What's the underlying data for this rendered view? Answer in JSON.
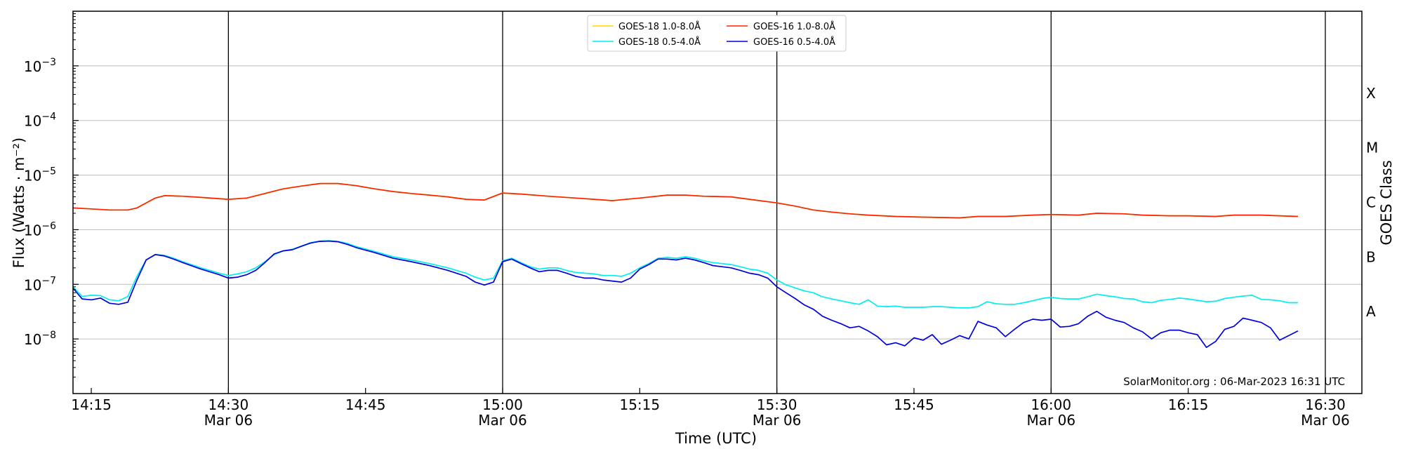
{
  "chart_data": {
    "type": "line",
    "xlabel": "Time (UTC)",
    "ylabel": "Flux (Watts · m⁻²)",
    "y2label": "GOES Class",
    "yscale": "log",
    "xlim": [
      "2023-03-06T14:13",
      "2023-03-06T16:34"
    ],
    "ylim": [
      1e-09,
      0.01
    ],
    "grid": "horizontal at decades",
    "x_tick_labels": [
      {
        "t": "14:15",
        "top": "14:15",
        "bottom": ""
      },
      {
        "t": "14:30",
        "top": "14:30",
        "bottom": "Mar 06"
      },
      {
        "t": "14:45",
        "top": "14:45",
        "bottom": ""
      },
      {
        "t": "15:00",
        "top": "15:00",
        "bottom": "Mar 06"
      },
      {
        "t": "15:15",
        "top": "15:15",
        "bottom": ""
      },
      {
        "t": "15:30",
        "top": "15:30",
        "bottom": "Mar 06"
      },
      {
        "t": "15:45",
        "top": "15:45",
        "bottom": ""
      },
      {
        "t": "16:00",
        "top": "16:00",
        "bottom": "Mar 06"
      },
      {
        "t": "16:15",
        "top": "16:15",
        "bottom": ""
      },
      {
        "t": "16:30",
        "top": "16:30",
        "bottom": "Mar 06"
      }
    ],
    "vertical_lines_at": [
      "14:30",
      "15:00",
      "15:30",
      "16:00",
      "16:30"
    ],
    "y_tick_labels": [
      {
        "exp": -8,
        "label": "10",
        "sup": "−8"
      },
      {
        "exp": -7,
        "label": "10",
        "sup": "−7"
      },
      {
        "exp": -6,
        "label": "10",
        "sup": "−6"
      },
      {
        "exp": -5,
        "label": "10",
        "sup": "−5"
      },
      {
        "exp": -4,
        "label": "10",
        "sup": "−4"
      },
      {
        "exp": -3,
        "label": "10",
        "sup": "−3"
      }
    ],
    "goes_classes": [
      {
        "label": "A",
        "exp": -7.5
      },
      {
        "label": "B",
        "exp": -6.5
      },
      {
        "label": "C",
        "exp": -5.5
      },
      {
        "label": "M",
        "exp": -4.5
      },
      {
        "label": "X",
        "exp": -3.5
      }
    ],
    "legend_position": "top-center",
    "annotation": "SolarMonitor.org : 06-Mar-2023 16:31 UTC",
    "series": [
      {
        "name": "GOES-18 1.0-8.0Å",
        "color": "#ffd700",
        "x": [
          "14:13",
          "14:15",
          "14:17",
          "14:19",
          "14:20",
          "14:22",
          "14:23",
          "14:25",
          "14:27",
          "14:30",
          "14:32",
          "14:34",
          "14:36",
          "14:38",
          "14:40",
          "14:42",
          "14:44",
          "14:46",
          "14:48",
          "14:50",
          "14:52",
          "14:54",
          "14:56",
          "14:58",
          "15:00",
          "15:02",
          "15:05",
          "15:08",
          "15:10",
          "15:12",
          "15:15",
          "15:18",
          "15:20",
          "15:22",
          "15:25",
          "15:27",
          "15:30",
          "15:32",
          "15:34",
          "15:36",
          "15:38",
          "15:40",
          "15:43",
          "15:46",
          "15:50",
          "15:52",
          "15:55",
          "15:58",
          "16:00",
          "16:03",
          "16:05",
          "16:08",
          "16:10",
          "16:13",
          "16:15",
          "16:18",
          "16:20",
          "16:23",
          "16:25",
          "16:27"
        ],
        "y": [
          2.5e-06,
          2.4e-06,
          2.3e-06,
          2.3e-06,
          2.5e-06,
          3.8e-06,
          4.2e-06,
          4.1e-06,
          3.9e-06,
          3.6e-06,
          3.8e-06,
          4.6e-06,
          5.6e-06,
          6.3e-06,
          7e-06,
          7e-06,
          6.4e-06,
          5.6e-06,
          5e-06,
          4.6e-06,
          4.3e-06,
          4e-06,
          3.6e-06,
          3.5e-06,
          4.7e-06,
          4.5e-06,
          4.1e-06,
          3.8e-06,
          3.6e-06,
          3.4e-06,
          3.8e-06,
          4.3e-06,
          4.3e-06,
          4.1e-06,
          4e-06,
          3.6e-06,
          3.1e-06,
          2.7e-06,
          2.3e-06,
          2.1e-06,
          1.95e-06,
          1.85e-06,
          1.75e-06,
          1.7e-06,
          1.65e-06,
          1.75e-06,
          1.75e-06,
          1.85e-06,
          1.9e-06,
          1.85e-06,
          2e-06,
          1.95e-06,
          1.85e-06,
          1.8e-06,
          1.8e-06,
          1.75e-06,
          1.85e-06,
          1.85e-06,
          1.8e-06,
          1.75e-06
        ]
      },
      {
        "name": "GOES-18 0.5-4.0Å",
        "color": "#00eeee",
        "x": [
          "14:13",
          "14:14",
          "14:15",
          "14:16",
          "14:17",
          "14:18",
          "14:19",
          "14:20",
          "14:21",
          "14:22",
          "14:23",
          "14:24",
          "14:25",
          "14:27",
          "14:29",
          "14:30",
          "14:31",
          "14:32",
          "14:33",
          "14:34",
          "14:35",
          "14:36",
          "14:37",
          "14:38",
          "14:39",
          "14:40",
          "14:41",
          "14:42",
          "14:43",
          "14:44",
          "14:46",
          "14:48",
          "14:50",
          "14:52",
          "14:54",
          "14:56",
          "14:57",
          "14:58",
          "14:59",
          "15:00",
          "15:01",
          "15:02",
          "15:03",
          "15:04",
          "15:05",
          "15:06",
          "15:07",
          "15:08",
          "15:09",
          "15:10",
          "15:11",
          "15:12",
          "15:13",
          "15:14",
          "15:15",
          "15:16",
          "15:17",
          "15:18",
          "15:19",
          "15:20",
          "15:21",
          "15:22",
          "15:23",
          "15:24",
          "15:25",
          "15:26",
          "15:27",
          "15:28",
          "15:29",
          "15:30",
          "15:31",
          "15:32",
          "15:33",
          "15:34",
          "15:35",
          "15:36",
          "15:37",
          "15:38",
          "15:39",
          "15:40",
          "15:41",
          "15:42",
          "15:43",
          "15:44",
          "15:45",
          "15:46",
          "15:47",
          "15:48",
          "15:49",
          "15:50",
          "15:51",
          "15:52",
          "15:53",
          "15:54",
          "15:55",
          "15:56",
          "15:57",
          "15:58",
          "15:59",
          "16:00",
          "16:01",
          "16:02",
          "16:03",
          "16:04",
          "16:05",
          "16:06",
          "16:07",
          "16:08",
          "16:09",
          "16:10",
          "16:11",
          "16:12",
          "16:13",
          "16:14",
          "16:15",
          "16:16",
          "16:17",
          "16:18",
          "16:19",
          "16:20",
          "16:21",
          "16:22",
          "16:23",
          "16:24",
          "16:25",
          "16:26",
          "16:27"
        ],
        "y": [
          9e-08,
          6e-08,
          6.3e-08,
          6.2e-08,
          5.2e-08,
          5e-08,
          6e-08,
          1.4e-07,
          2.8e-07,
          3.5e-07,
          3.4e-07,
          3e-07,
          2.6e-07,
          2e-07,
          1.6e-07,
          1.45e-07,
          1.55e-07,
          1.7e-07,
          2e-07,
          2.6e-07,
          3.5e-07,
          4.1e-07,
          4.4e-07,
          5e-07,
          5.8e-07,
          6.2e-07,
          6.3e-07,
          6.1e-07,
          5.6e-07,
          4.9e-07,
          4e-07,
          3.2e-07,
          2.8e-07,
          2.4e-07,
          2e-07,
          1.6e-07,
          1.35e-07,
          1.2e-07,
          1.3e-07,
          2.7e-07,
          3e-07,
          2.5e-07,
          2.1e-07,
          1.9e-07,
          2e-07,
          2e-07,
          1.8e-07,
          1.65e-07,
          1.6e-07,
          1.55e-07,
          1.45e-07,
          1.45e-07,
          1.4e-07,
          1.6e-07,
          2e-07,
          2.4e-07,
          3e-07,
          3.1e-07,
          3e-07,
          3.2e-07,
          3e-07,
          2.7e-07,
          2.5e-07,
          2.4e-07,
          2.3e-07,
          2.1e-07,
          1.9e-07,
          1.8e-07,
          1.6e-07,
          1.2e-07,
          9.8e-08,
          8.6e-08,
          7.6e-08,
          7e-08,
          5.9e-08,
          5.4e-08,
          5e-08,
          4.6e-08,
          4.3e-08,
          5.2e-08,
          4e-08,
          3.9e-08,
          4e-08,
          3.8e-08,
          3.8e-08,
          3.8e-08,
          3.9e-08,
          3.9e-08,
          3.8e-08,
          3.7e-08,
          3.7e-08,
          3.9e-08,
          4.8e-08,
          4.4e-08,
          4.3e-08,
          4.3e-08,
          4.6e-08,
          5e-08,
          5.5e-08,
          5.8e-08,
          5.5e-08,
          5.4e-08,
          5.4e-08,
          5.9e-08,
          6.6e-08,
          6.2e-08,
          5.9e-08,
          5.5e-08,
          5.4e-08,
          4.8e-08,
          4.6e-08,
          5.1e-08,
          5.3e-08,
          5.6e-08,
          5.4e-08,
          5.1e-08,
          4.8e-08,
          4.9e-08,
          5.5e-08,
          5.8e-08,
          6.1e-08,
          6.3e-08,
          5.3e-08,
          5.2e-08,
          5e-08,
          4.6e-08,
          4.6e-08
        ]
      },
      {
        "name": "GOES-16 1.0-8.0Å",
        "color": "#ff2200",
        "x": [
          "14:13",
          "14:15",
          "14:17",
          "14:19",
          "14:20",
          "14:22",
          "14:23",
          "14:25",
          "14:27",
          "14:30",
          "14:32",
          "14:34",
          "14:36",
          "14:38",
          "14:40",
          "14:42",
          "14:44",
          "14:46",
          "14:48",
          "14:50",
          "14:52",
          "14:54",
          "14:56",
          "14:58",
          "15:00",
          "15:02",
          "15:05",
          "15:08",
          "15:10",
          "15:12",
          "15:15",
          "15:18",
          "15:20",
          "15:22",
          "15:25",
          "15:27",
          "15:30",
          "15:32",
          "15:34",
          "15:36",
          "15:38",
          "15:40",
          "15:43",
          "15:46",
          "15:50",
          "15:52",
          "15:55",
          "15:58",
          "16:00",
          "16:03",
          "16:05",
          "16:08",
          "16:10",
          "16:13",
          "16:15",
          "16:18",
          "16:20",
          "16:23",
          "16:25",
          "16:27"
        ],
        "y": [
          2.5e-06,
          2.4e-06,
          2.3e-06,
          2.3e-06,
          2.5e-06,
          3.8e-06,
          4.2e-06,
          4.1e-06,
          3.9e-06,
          3.6e-06,
          3.8e-06,
          4.6e-06,
          5.6e-06,
          6.3e-06,
          7e-06,
          7e-06,
          6.4e-06,
          5.6e-06,
          5e-06,
          4.6e-06,
          4.3e-06,
          4e-06,
          3.6e-06,
          3.5e-06,
          4.7e-06,
          4.5e-06,
          4.1e-06,
          3.8e-06,
          3.6e-06,
          3.4e-06,
          3.8e-06,
          4.3e-06,
          4.3e-06,
          4.1e-06,
          4e-06,
          3.6e-06,
          3.1e-06,
          2.7e-06,
          2.3e-06,
          2.1e-06,
          1.95e-06,
          1.85e-06,
          1.75e-06,
          1.7e-06,
          1.65e-06,
          1.75e-06,
          1.75e-06,
          1.85e-06,
          1.9e-06,
          1.85e-06,
          2e-06,
          1.95e-06,
          1.85e-06,
          1.8e-06,
          1.8e-06,
          1.75e-06,
          1.85e-06,
          1.85e-06,
          1.8e-06,
          1.75e-06
        ]
      },
      {
        "name": "GOES-16 0.5-4.0Å",
        "color": "#0000dd",
        "x": [
          "14:13",
          "14:14",
          "14:15",
          "14:16",
          "14:17",
          "14:18",
          "14:19",
          "14:20",
          "14:21",
          "14:22",
          "14:23",
          "14:24",
          "14:25",
          "14:27",
          "14:29",
          "14:30",
          "14:31",
          "14:32",
          "14:33",
          "14:34",
          "14:35",
          "14:36",
          "14:37",
          "14:38",
          "14:39",
          "14:40",
          "14:41",
          "14:42",
          "14:43",
          "14:44",
          "14:46",
          "14:48",
          "14:50",
          "14:52",
          "14:54",
          "14:56",
          "14:57",
          "14:58",
          "14:59",
          "15:00",
          "15:01",
          "15:02",
          "15:03",
          "15:04",
          "15:05",
          "15:06",
          "15:07",
          "15:08",
          "15:09",
          "15:10",
          "15:11",
          "15:12",
          "15:13",
          "15:14",
          "15:15",
          "15:16",
          "15:17",
          "15:18",
          "15:19",
          "15:20",
          "15:21",
          "15:22",
          "15:23",
          "15:24",
          "15:25",
          "15:26",
          "15:27",
          "15:28",
          "15:29",
          "15:30",
          "15:31",
          "15:32",
          "15:33",
          "15:34",
          "15:35",
          "15:36",
          "15:37",
          "15:38",
          "15:39",
          "15:40",
          "15:41",
          "15:42",
          "15:43",
          "15:44",
          "15:45",
          "15:46",
          "15:47",
          "15:48",
          "15:49",
          "15:50",
          "15:51",
          "15:52",
          "15:53",
          "15:54",
          "15:55",
          "15:56",
          "15:57",
          "15:58",
          "15:59",
          "16:00",
          "16:01",
          "16:02",
          "16:03",
          "16:04",
          "16:05",
          "16:06",
          "16:07",
          "16:08",
          "16:09",
          "16:10",
          "16:11",
          "16:12",
          "16:13",
          "16:14",
          "16:15",
          "16:16",
          "16:17",
          "16:18",
          "16:19",
          "16:20",
          "16:21",
          "16:22",
          "16:23",
          "16:24",
          "16:25",
          "16:26",
          "16:27"
        ],
        "y": [
          8.5e-08,
          5.4e-08,
          5.2e-08,
          5.6e-08,
          4.5e-08,
          4.3e-08,
          4.7e-08,
          1.2e-07,
          2.8e-07,
          3.5e-07,
          3.3e-07,
          2.9e-07,
          2.5e-07,
          1.9e-07,
          1.5e-07,
          1.3e-07,
          1.35e-07,
          1.5e-07,
          1.8e-07,
          2.5e-07,
          3.6e-07,
          4.1e-07,
          4.3e-07,
          5e-07,
          5.7e-07,
          6.1e-07,
          6.2e-07,
          6e-07,
          5.4e-07,
          4.7e-07,
          3.8e-07,
          3e-07,
          2.6e-07,
          2.2e-07,
          1.8e-07,
          1.4e-07,
          1.1e-07,
          9.7e-08,
          1.1e-07,
          2.6e-07,
          2.9e-07,
          2.4e-07,
          2e-07,
          1.7e-07,
          1.8e-07,
          1.8e-07,
          1.6e-07,
          1.4e-07,
          1.3e-07,
          1.3e-07,
          1.2e-07,
          1.15e-07,
          1.1e-07,
          1.3e-07,
          1.9e-07,
          2.3e-07,
          2.9e-07,
          2.9e-07,
          2.8e-07,
          3e-07,
          2.8e-07,
          2.5e-07,
          2.2e-07,
          2.1e-07,
          2e-07,
          1.8e-07,
          1.6e-07,
          1.5e-07,
          1.3e-07,
          9e-08,
          7e-08,
          5.5e-08,
          4.2e-08,
          3.5e-08,
          2.6e-08,
          2.2e-08,
          1.9e-08,
          1.6e-08,
          1.7e-08,
          1.4e-08,
          1.1e-08,
          7.8e-09,
          8.5e-09,
          7.5e-09,
          1.05e-08,
          9.5e-09,
          1.2e-08,
          8e-09,
          9.5e-09,
          1.15e-08,
          1e-08,
          2.1e-08,
          1.8e-08,
          1.6e-08,
          1.1e-08,
          1.5e-08,
          2e-08,
          2.3e-08,
          2.2e-08,
          2.3e-08,
          1.65e-08,
          1.7e-08,
          1.9e-08,
          2.6e-08,
          3.2e-08,
          2.5e-08,
          2.2e-08,
          2e-08,
          1.6e-08,
          1.35e-08,
          1e-08,
          1.3e-08,
          1.45e-08,
          1.45e-08,
          1.3e-08,
          1.2e-08,
          7e-09,
          9e-09,
          1.5e-08,
          1.7e-08,
          2.4e-08,
          2.2e-08,
          2e-08,
          1.6e-08,
          9.5e-09,
          1.15e-08,
          1.4e-08
        ]
      }
    ]
  }
}
